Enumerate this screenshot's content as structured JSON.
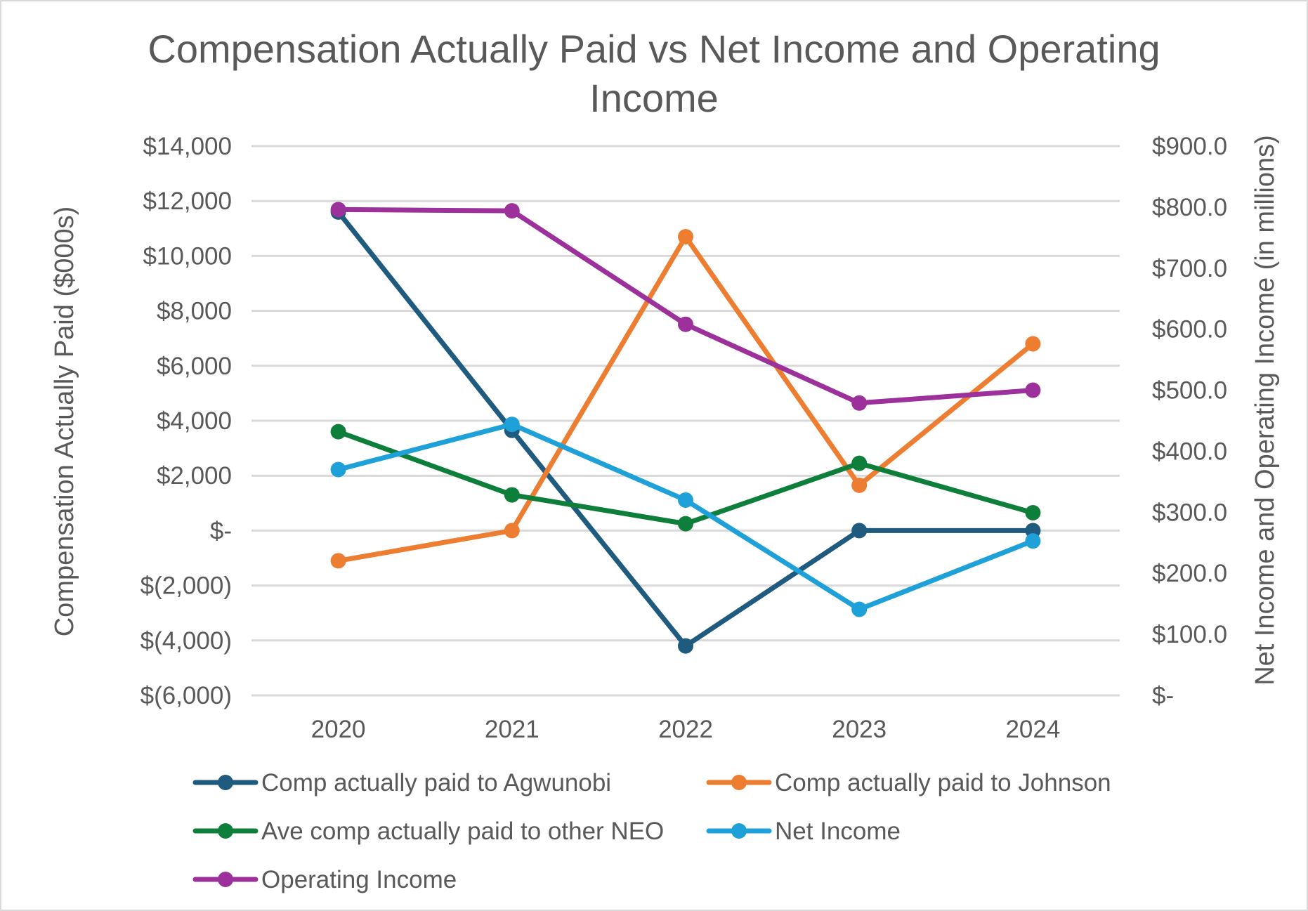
{
  "chart_data": {
    "type": "line",
    "title_line1": "Compensation Actually Paid vs Net Income and Operating",
    "title_line2": "Income",
    "ylabel_left": "Compensation Actually Paid ($000s)",
    "ylabel_right": "Net Income and Operating Income (in millions)",
    "categories": [
      "2020",
      "2021",
      "2022",
      "2023",
      "2024"
    ],
    "y_left": {
      "min": -6000,
      "max": 14000,
      "step": 2000,
      "tick_labels": [
        "$(6,000)",
        "$(4,000)",
        "$(2,000)",
        "$-",
        "$2,000",
        "$4,000",
        "$6,000",
        "$8,000",
        "$10,000",
        "$12,000",
        "$14,000"
      ]
    },
    "y_right": {
      "min": 0,
      "max": 900,
      "step": 100,
      "tick_labels": [
        "$-",
        "$100.0",
        "$200.0",
        "$300.0",
        "$400.0",
        "$500.0",
        "$600.0",
        "$700.0",
        "$800.0",
        "$900.0"
      ]
    },
    "grid": true,
    "legend_position": "bottom",
    "series": [
      {
        "name": "Comp actually paid to Agwunobi",
        "axis": "left",
        "color": "#1f5b7f",
        "values": [
          11600,
          3650,
          -4200,
          0,
          0
        ]
      },
      {
        "name": "Comp actually paid to Johnson",
        "axis": "left",
        "color": "#ed7d31",
        "values": [
          -1100,
          0,
          10700,
          1650,
          6800
        ]
      },
      {
        "name": "Ave comp actually paid to other NEO",
        "axis": "left",
        "color": "#0e7f3b",
        "values": [
          3600,
          1300,
          250,
          2450,
          650
        ]
      },
      {
        "name": "Net Income",
        "axis": "right",
        "color": "#1ea0d8",
        "values": [
          370,
          444,
          320,
          141,
          253
        ]
      },
      {
        "name": "Operating Income",
        "axis": "right",
        "color": "#9c319b",
        "values": [
          796,
          794,
          608,
          479,
          500
        ]
      }
    ]
  }
}
